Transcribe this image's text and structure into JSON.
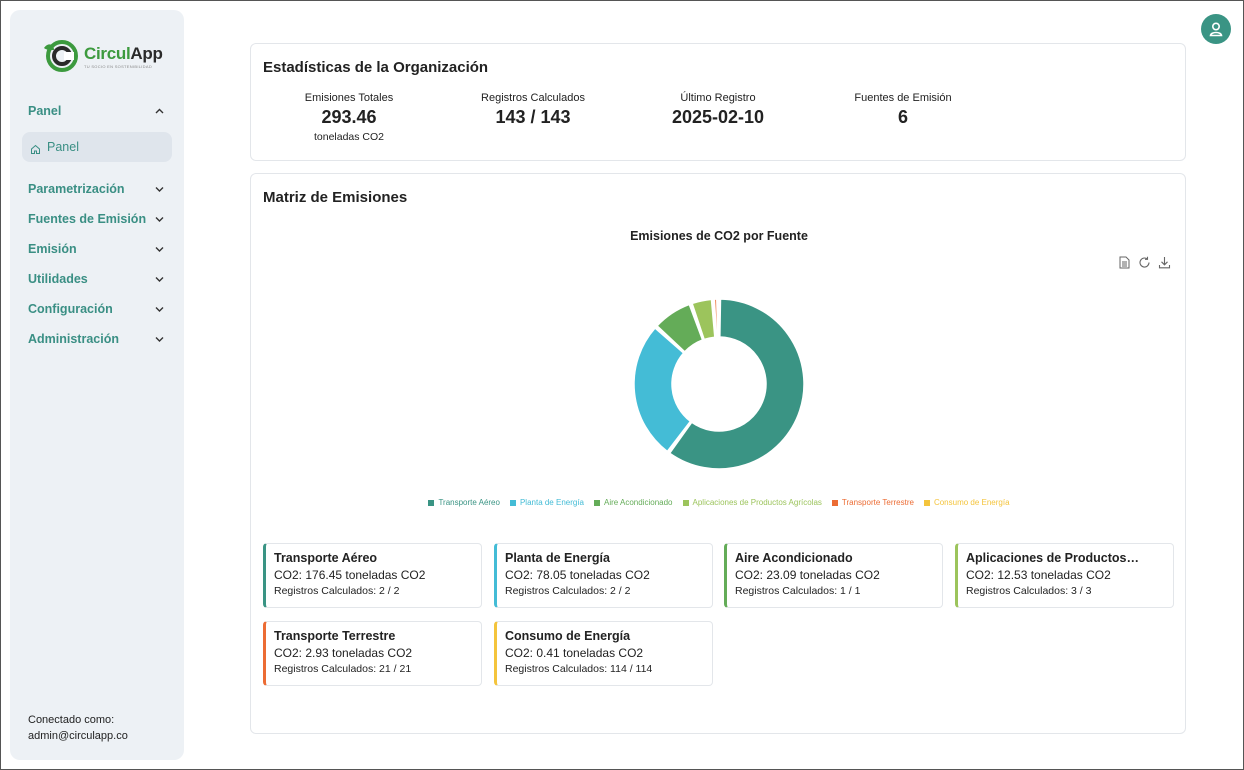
{
  "brand": {
    "name_part1": "Circul",
    "name_part2": "App",
    "tagline": "tu socio en sostenibilidad"
  },
  "sidebar": {
    "groups": [
      {
        "label": "Panel",
        "expanded": true
      },
      {
        "label": "Parametrización"
      },
      {
        "label": "Fuentes de Emisión"
      },
      {
        "label": "Emisión"
      },
      {
        "label": "Utilidades"
      },
      {
        "label": "Configuración"
      },
      {
        "label": "Administración"
      }
    ],
    "active_item": "Panel",
    "connected_label": "Conectado como:",
    "connected_user": "admin@circulapp.co"
  },
  "stats": {
    "title": "Estadísticas de la Organización",
    "items": [
      {
        "label": "Emisiones Totales",
        "value": "293.46",
        "unit": "toneladas CO2"
      },
      {
        "label": "Registros Calculados",
        "value": "143 / 143"
      },
      {
        "label": "Último Registro",
        "value": "2025-02-10"
      },
      {
        "label": "Fuentes de Emisión",
        "value": "6"
      }
    ]
  },
  "matrix": {
    "title": "Matriz de Emisiones",
    "chart_title": "Emisiones de CO2 por Fuente",
    "toolbar": [
      "data-view-icon",
      "refresh-icon",
      "download-icon"
    ]
  },
  "chart_data": {
    "type": "pie",
    "title": "Emisiones de CO2 por Fuente",
    "donut": true,
    "legend_position": "bottom",
    "categories": [
      "Transporte Aéreo",
      "Planta de Energía",
      "Aire Acondicionado",
      "Aplicaciones de Productos Agrícolas",
      "Transporte Terrestre",
      "Consumo de Energía"
    ],
    "values": [
      176.45,
      78.05,
      23.09,
      12.53,
      2.93,
      0.41
    ],
    "colors": [
      "#3a9484",
      "#44bcd6",
      "#64ac58",
      "#9cc45c",
      "#ec6c34",
      "#f4c43c"
    ]
  },
  "sources": [
    {
      "name": "Transporte Aéreo",
      "co2": "CO2: 176.45 toneladas CO2",
      "registros": "Registros Calculados: 2 / 2",
      "color": "#3a9484"
    },
    {
      "name": "Planta de Energía",
      "co2": "CO2: 78.05 toneladas CO2",
      "registros": "Registros Calculados: 2 / 2",
      "color": "#44bcd6"
    },
    {
      "name": "Aire Acondicionado",
      "co2": "CO2: 23.09 toneladas CO2",
      "registros": "Registros Calculados: 1 / 1",
      "color": "#64ac58"
    },
    {
      "name": "Aplicaciones de Productos…",
      "co2": "CO2: 12.53 toneladas CO2",
      "registros": "Registros Calculados: 3 / 3",
      "color": "#9cc45c"
    },
    {
      "name": "Transporte Terrestre",
      "co2": "CO2: 2.93 toneladas CO2",
      "registros": "Registros Calculados: 21 / 21",
      "color": "#ec6c34"
    },
    {
      "name": "Consumo de Energía",
      "co2": "CO2: 0.41 toneladas CO2",
      "registros": "Registros Calculados: 114 / 114",
      "color": "#f4c43c"
    }
  ]
}
